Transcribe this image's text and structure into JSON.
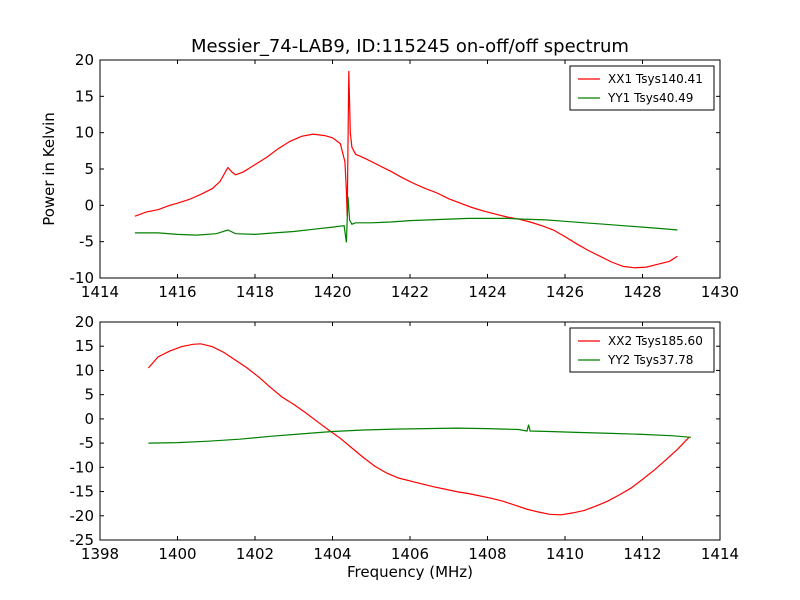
{
  "figure": {
    "title": "Messier_74-LAB9, ID:115245 on-off/off spectrum",
    "ylabel": "Power in Kelvin",
    "xlabel": "Frequency (MHz)"
  },
  "chart_data": [
    {
      "type": "line",
      "title": "Messier_74-LAB9, ID:115245 on-off/off spectrum",
      "xlabel": "",
      "ylabel": "Power in Kelvin",
      "xlim": [
        1414,
        1430
      ],
      "ylim": [
        -10,
        20
      ],
      "xticks": [
        1414,
        1416,
        1418,
        1420,
        1422,
        1424,
        1426,
        1428,
        1430
      ],
      "yticks": [
        -10,
        -5,
        0,
        5,
        10,
        15,
        20
      ],
      "grid": false,
      "legend_position": "top-right",
      "series": [
        {
          "name": "XX1 Tsys140.41",
          "color": "#ff0000",
          "x": [
            1414.9,
            1415.2,
            1415.5,
            1415.8,
            1416.0,
            1416.3,
            1416.6,
            1416.9,
            1417.1,
            1417.3,
            1417.4,
            1417.5,
            1417.7,
            1418.0,
            1418.3,
            1418.6,
            1418.9,
            1419.2,
            1419.5,
            1419.8,
            1420.0,
            1420.2,
            1420.32,
            1420.36,
            1420.38,
            1420.42,
            1420.46,
            1420.5,
            1420.55,
            1420.6,
            1420.7,
            1420.9,
            1421.2,
            1421.5,
            1421.8,
            1422.1,
            1422.4,
            1422.7,
            1423.0,
            1423.3,
            1423.6,
            1423.9,
            1424.2,
            1424.5,
            1424.8,
            1425.1,
            1425.4,
            1425.7,
            1426.0,
            1426.3,
            1426.6,
            1426.9,
            1427.2,
            1427.5,
            1427.8,
            1428.1,
            1428.4,
            1428.7,
            1428.9
          ],
          "values": [
            -1.5,
            -0.9,
            -0.6,
            0.0,
            0.3,
            0.8,
            1.5,
            2.3,
            3.3,
            5.2,
            4.6,
            4.2,
            4.6,
            5.6,
            6.6,
            7.8,
            8.8,
            9.5,
            9.8,
            9.6,
            9.3,
            8.5,
            6.0,
            2.0,
            -1.5,
            18.5,
            10.0,
            8.0,
            7.5,
            7.0,
            6.8,
            6.3,
            5.5,
            4.7,
            3.8,
            3.0,
            2.3,
            1.7,
            0.9,
            0.3,
            -0.3,
            -0.8,
            -1.2,
            -1.6,
            -1.9,
            -2.3,
            -2.8,
            -3.4,
            -4.3,
            -5.3,
            -6.2,
            -7.0,
            -7.8,
            -8.4,
            -8.6,
            -8.5,
            -8.1,
            -7.7,
            -7.0
          ]
        },
        {
          "name": "YY1 Tsys40.49",
          "color": "#008000",
          "x": [
            1414.9,
            1415.5,
            1416.0,
            1416.5,
            1417.0,
            1417.3,
            1417.5,
            1418.0,
            1418.5,
            1419.0,
            1419.5,
            1420.0,
            1420.3,
            1420.36,
            1420.4,
            1420.44,
            1420.5,
            1420.6,
            1421.0,
            1421.5,
            1422.0,
            1422.5,
            1423.0,
            1423.5,
            1424.0,
            1424.5,
            1424.9,
            1425.5,
            1426.0,
            1426.5,
            1427.0,
            1427.5,
            1428.0,
            1428.5,
            1428.9
          ],
          "values": [
            -3.8,
            -3.8,
            -4.0,
            -4.1,
            -3.9,
            -3.4,
            -3.9,
            -4.0,
            -3.8,
            -3.6,
            -3.3,
            -3.0,
            -2.8,
            -5.1,
            1.2,
            -2.0,
            -2.6,
            -2.4,
            -2.4,
            -2.3,
            -2.1,
            -2.0,
            -1.9,
            -1.8,
            -1.8,
            -1.8,
            -1.9,
            -2.0,
            -2.2,
            -2.4,
            -2.6,
            -2.8,
            -3.0,
            -3.2,
            -3.4
          ]
        }
      ]
    },
    {
      "type": "line",
      "title": "",
      "xlabel": "Frequency (MHz)",
      "ylabel": "",
      "xlim": [
        1398,
        1414
      ],
      "ylim": [
        -25,
        20
      ],
      "xticks": [
        1398,
        1400,
        1402,
        1404,
        1406,
        1408,
        1410,
        1412,
        1414
      ],
      "yticks": [
        -25,
        -20,
        -15,
        -10,
        -5,
        0,
        5,
        10,
        15,
        20
      ],
      "grid": false,
      "legend_position": "top-right",
      "series": [
        {
          "name": "XX2 Tsys185.60",
          "color": "#ff0000",
          "x": [
            1399.25,
            1399.5,
            1399.8,
            1400.1,
            1400.4,
            1400.6,
            1400.9,
            1401.2,
            1401.5,
            1401.8,
            1402.1,
            1402.4,
            1402.7,
            1403.0,
            1403.3,
            1403.6,
            1403.9,
            1404.2,
            1404.5,
            1404.8,
            1405.1,
            1405.4,
            1405.7,
            1406.0,
            1406.3,
            1406.6,
            1406.9,
            1407.2,
            1407.5,
            1407.8,
            1408.1,
            1408.4,
            1408.7,
            1409.0,
            1409.3,
            1409.6,
            1409.9,
            1410.2,
            1410.5,
            1410.8,
            1411.1,
            1411.4,
            1411.7,
            1412.0,
            1412.3,
            1412.6,
            1412.9,
            1413.2
          ],
          "values": [
            10.5,
            12.8,
            14.0,
            14.9,
            15.4,
            15.5,
            14.9,
            13.7,
            12.1,
            10.5,
            8.6,
            6.5,
            4.5,
            3.0,
            1.3,
            -0.5,
            -2.3,
            -4.0,
            -6.0,
            -8.0,
            -9.8,
            -11.2,
            -12.2,
            -12.8,
            -13.4,
            -14.0,
            -14.5,
            -15.0,
            -15.4,
            -15.9,
            -16.4,
            -17.0,
            -17.8,
            -18.6,
            -19.2,
            -19.7,
            -19.8,
            -19.4,
            -18.9,
            -18.0,
            -17.0,
            -15.7,
            -14.3,
            -12.5,
            -10.6,
            -8.5,
            -6.3,
            -3.8
          ]
        },
        {
          "name": "YY2 Tsys37.78",
          "color": "#008000",
          "x": [
            1399.25,
            1400.0,
            1400.8,
            1401.6,
            1402.4,
            1403.2,
            1404.0,
            1404.8,
            1405.6,
            1406.4,
            1407.2,
            1408.0,
            1408.8,
            1409.02,
            1409.06,
            1409.1,
            1409.6,
            1410.4,
            1411.2,
            1412.0,
            1412.8,
            1413.25
          ],
          "values": [
            -5.0,
            -4.9,
            -4.6,
            -4.2,
            -3.6,
            -3.1,
            -2.6,
            -2.3,
            -2.1,
            -2.0,
            -1.9,
            -2.0,
            -2.2,
            -2.5,
            -1.2,
            -2.5,
            -2.6,
            -2.8,
            -3.0,
            -3.2,
            -3.5,
            -3.8
          ]
        }
      ]
    }
  ]
}
